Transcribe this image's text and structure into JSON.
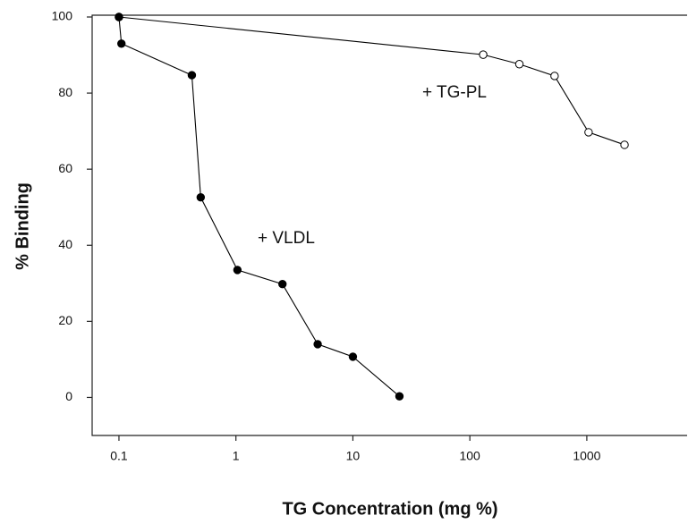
{
  "chart_data": {
    "type": "line",
    "xlabel": "TG Concentration (mg %)",
    "ylabel": "% Binding",
    "xscale": "log",
    "xlim": [
      0.059,
      7200
    ],
    "ylim": [
      -10,
      100
    ],
    "xticks": [
      0.1,
      1,
      10,
      100,
      1000
    ],
    "yticks": [
      0,
      20,
      40,
      60,
      80,
      100
    ],
    "annotations": [
      "+ TG-PL",
      "+ VLDL"
    ],
    "series": [
      {
        "name": "+ TG-PL",
        "color": "#000000",
        "marker": "open",
        "x": [
          0.1,
          130,
          265,
          530,
          1035,
          2100
        ],
        "values": [
          100,
          90.1,
          87.6,
          84.5,
          69.7,
          66.4
        ]
      },
      {
        "name": "+ VLDL",
        "color": "#000000",
        "marker": "filled",
        "x": [
          0.1,
          0.105,
          0.42,
          0.5,
          1.03,
          2.5,
          5,
          10,
          25
        ],
        "values": [
          100,
          93,
          84.7,
          52.6,
          33.5,
          29.8,
          14,
          10.7,
          0.3
        ]
      }
    ]
  }
}
